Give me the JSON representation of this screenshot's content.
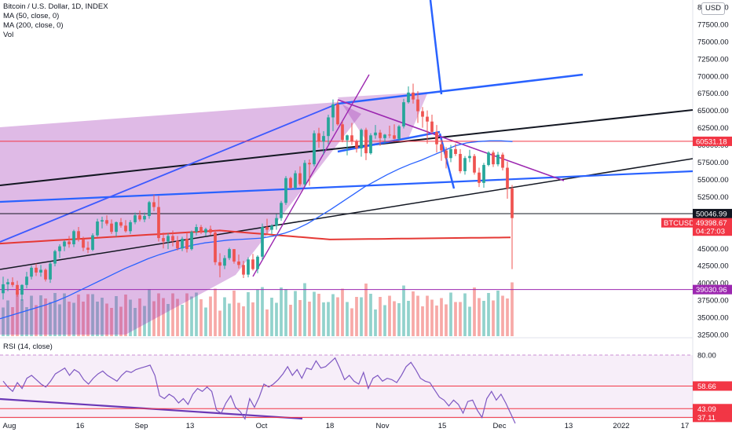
{
  "legend": {
    "symbol": "Bitcoin / U.S. Dollar, 1D, INDEX",
    "ma50": "MA (50, close, 0)",
    "ma200": "MA (200, close, 0)",
    "vol": "Vol"
  },
  "currency_button": "USD",
  "rsi_label": "RSI (14, close)",
  "chart_data": {
    "type": "candlestick",
    "title": "Bitcoin / U.S. Dollar, 1D, INDEX",
    "y_ticks": [
      "80000.00",
      "77500.00",
      "75000.00",
      "72500.00",
      "70000.00",
      "67500.00",
      "65000.00",
      "62500.00",
      "60000.00",
      "57500.00",
      "55000.00",
      "52500.00",
      "50000.00",
      "47500.00",
      "45000.00",
      "42500.00",
      "40000.00",
      "37500.00",
      "35000.00",
      "32500.00"
    ],
    "y_tick_values": [
      80000,
      77500,
      75000,
      72500,
      70000,
      67500,
      65000,
      62500,
      60000,
      57500,
      55000,
      52500,
      50000,
      47500,
      45000,
      42500,
      40000,
      37500,
      35000,
      32500
    ],
    "ylim": [
      32500,
      80000
    ],
    "x_ticks": [
      "Aug",
      "16",
      "Sep",
      "13",
      "Oct",
      "18",
      "Nov",
      "15",
      "Dec",
      "13",
      "2022",
      "17"
    ],
    "price_tags": [
      {
        "label": "60531.18",
        "value": 60531.18,
        "color": "#f23645"
      },
      {
        "label": "50046.99",
        "value": 50046.99,
        "color": "#131722"
      },
      {
        "label": "BTCUSD",
        "value": 49398.67,
        "color": "#f23645"
      },
      {
        "label": "49398.67",
        "value": 49398.67,
        "color": "#f23645"
      },
      {
        "label": "04:27:03",
        "value": 48650,
        "color": "#f23645"
      },
      {
        "label": "39030.96",
        "value": 39030.96,
        "color": "#9c27b0"
      }
    ],
    "horizontal_lines": [
      {
        "value": 60531.18,
        "color": "#f23645"
      },
      {
        "value": 50046.99,
        "color": "#131722"
      },
      {
        "value": 39030.96,
        "color": "#9c27b0"
      }
    ],
    "candles": [
      {
        "o": 38500,
        "h": 40900,
        "l": 37600,
        "c": 39800
      },
      {
        "o": 39800,
        "h": 40600,
        "l": 38800,
        "c": 40100
      },
      {
        "o": 40100,
        "h": 40800,
        "l": 39400,
        "c": 39700
      },
      {
        "o": 39700,
        "h": 40300,
        "l": 38000,
        "c": 38300
      },
      {
        "o": 38300,
        "h": 39800,
        "l": 37400,
        "c": 39700
      },
      {
        "o": 39700,
        "h": 41600,
        "l": 39200,
        "c": 40900
      },
      {
        "o": 40900,
        "h": 42500,
        "l": 40500,
        "c": 42200
      },
      {
        "o": 42200,
        "h": 42800,
        "l": 41000,
        "c": 41500
      },
      {
        "o": 41500,
        "h": 42600,
        "l": 40900,
        "c": 41900
      },
      {
        "o": 41900,
        "h": 42100,
        "l": 40200,
        "c": 40500
      },
      {
        "o": 40500,
        "h": 43100,
        "l": 40000,
        "c": 42800
      },
      {
        "o": 42800,
        "h": 44800,
        "l": 42400,
        "c": 44600
      },
      {
        "o": 44600,
        "h": 45600,
        "l": 43600,
        "c": 45300
      },
      {
        "o": 45300,
        "h": 46200,
        "l": 44600,
        "c": 46000
      },
      {
        "o": 46000,
        "h": 46800,
        "l": 45100,
        "c": 45600
      },
      {
        "o": 45600,
        "h": 47700,
        "l": 45200,
        "c": 47500
      },
      {
        "o": 47500,
        "h": 48100,
        "l": 46000,
        "c": 46300
      },
      {
        "o": 46300,
        "h": 46700,
        "l": 44600,
        "c": 45100
      },
      {
        "o": 45100,
        "h": 46000,
        "l": 44300,
        "c": 44800
      },
      {
        "o": 44800,
        "h": 47200,
        "l": 44600,
        "c": 46900
      },
      {
        "o": 46900,
        "h": 49300,
        "l": 46700,
        "c": 48900
      },
      {
        "o": 48900,
        "h": 49600,
        "l": 47900,
        "c": 49100
      },
      {
        "o": 49100,
        "h": 49800,
        "l": 48300,
        "c": 48600
      },
      {
        "o": 48600,
        "h": 49200,
        "l": 47100,
        "c": 47400
      },
      {
        "o": 47400,
        "h": 48900,
        "l": 46700,
        "c": 48800
      },
      {
        "o": 48800,
        "h": 49400,
        "l": 48000,
        "c": 48300
      },
      {
        "o": 48300,
        "h": 49100,
        "l": 47300,
        "c": 47500
      },
      {
        "o": 47500,
        "h": 49100,
        "l": 47100,
        "c": 48800
      },
      {
        "o": 48800,
        "h": 50200,
        "l": 48500,
        "c": 49800
      },
      {
        "o": 49800,
        "h": 50500,
        "l": 48900,
        "c": 49200
      },
      {
        "o": 49200,
        "h": 50200,
        "l": 48800,
        "c": 49700
      },
      {
        "o": 49700,
        "h": 51900,
        "l": 49300,
        "c": 51700
      },
      {
        "o": 51700,
        "h": 52800,
        "l": 50400,
        "c": 51000
      },
      {
        "o": 51000,
        "h": 52600,
        "l": 46000,
        "c": 46500
      },
      {
        "o": 46500,
        "h": 47300,
        "l": 45000,
        "c": 46000
      },
      {
        "o": 46000,
        "h": 47200,
        "l": 44900,
        "c": 46800
      },
      {
        "o": 46800,
        "h": 47600,
        "l": 45300,
        "c": 46100
      },
      {
        "o": 46100,
        "h": 46800,
        "l": 44700,
        "c": 45000
      },
      {
        "o": 45000,
        "h": 46700,
        "l": 44600,
        "c": 46400
      },
      {
        "o": 46400,
        "h": 47300,
        "l": 44400,
        "c": 44900
      },
      {
        "o": 44900,
        "h": 47600,
        "l": 44700,
        "c": 47400
      },
      {
        "o": 47400,
        "h": 48500,
        "l": 46900,
        "c": 48100
      },
      {
        "o": 48100,
        "h": 48400,
        "l": 47100,
        "c": 47300
      },
      {
        "o": 47300,
        "h": 48000,
        "l": 46800,
        "c": 47800
      },
      {
        "o": 47800,
        "h": 48300,
        "l": 46900,
        "c": 47300
      },
      {
        "o": 47300,
        "h": 47700,
        "l": 42600,
        "c": 43000
      },
      {
        "o": 43000,
        "h": 44300,
        "l": 40800,
        "c": 42500
      },
      {
        "o": 42500,
        "h": 44000,
        "l": 42000,
        "c": 43600
      },
      {
        "o": 43600,
        "h": 45100,
        "l": 43300,
        "c": 44900
      },
      {
        "o": 44900,
        "h": 44900,
        "l": 42800,
        "c": 43100
      },
      {
        "o": 43100,
        "h": 44100,
        "l": 42100,
        "c": 42600
      },
      {
        "o": 42600,
        "h": 43200,
        "l": 40700,
        "c": 41200
      },
      {
        "o": 41200,
        "h": 43700,
        "l": 40800,
        "c": 43400
      },
      {
        "o": 43400,
        "h": 44200,
        "l": 41800,
        "c": 42000
      },
      {
        "o": 42000,
        "h": 44000,
        "l": 41400,
        "c": 43800
      },
      {
        "o": 43800,
        "h": 48600,
        "l": 43300,
        "c": 48100
      },
      {
        "o": 48100,
        "h": 49300,
        "l": 46900,
        "c": 47700
      },
      {
        "o": 47700,
        "h": 48500,
        "l": 47100,
        "c": 48300
      },
      {
        "o": 48300,
        "h": 50000,
        "l": 47700,
        "c": 49400
      },
      {
        "o": 49400,
        "h": 51900,
        "l": 49000,
        "c": 51600
      },
      {
        "o": 51600,
        "h": 55500,
        "l": 51300,
        "c": 55200
      },
      {
        "o": 55200,
        "h": 55400,
        "l": 53600,
        "c": 53800
      },
      {
        "o": 53800,
        "h": 56300,
        "l": 53500,
        "c": 55900
      },
      {
        "o": 55900,
        "h": 56900,
        "l": 54000,
        "c": 54300
      },
      {
        "o": 54300,
        "h": 57800,
        "l": 54000,
        "c": 57400
      },
      {
        "o": 57400,
        "h": 57900,
        "l": 54100,
        "c": 57200
      },
      {
        "o": 57200,
        "h": 62100,
        "l": 56900,
        "c": 61700
      },
      {
        "o": 61700,
        "h": 62500,
        "l": 59600,
        "c": 60500
      },
      {
        "o": 60500,
        "h": 62000,
        "l": 58600,
        "c": 61300
      },
      {
        "o": 61300,
        "h": 64400,
        "l": 60100,
        "c": 64000
      },
      {
        "o": 64000,
        "h": 66600,
        "l": 62000,
        "c": 65900
      },
      {
        "o": 65900,
        "h": 66400,
        "l": 62800,
        "c": 63000
      },
      {
        "o": 63000,
        "h": 63400,
        "l": 60400,
        "c": 60700
      },
      {
        "o": 60700,
        "h": 61500,
        "l": 58500,
        "c": 61400
      },
      {
        "o": 61400,
        "h": 63200,
        "l": 60000,
        "c": 60500
      },
      {
        "o": 60500,
        "h": 60800,
        "l": 58900,
        "c": 59500
      },
      {
        "o": 59500,
        "h": 62400,
        "l": 58300,
        "c": 62200
      },
      {
        "o": 62200,
        "h": 62500,
        "l": 57800,
        "c": 58800
      },
      {
        "o": 58800,
        "h": 61700,
        "l": 58600,
        "c": 61400
      },
      {
        "o": 61400,
        "h": 62900,
        "l": 60900,
        "c": 61800
      },
      {
        "o": 61800,
        "h": 62200,
        "l": 59900,
        "c": 61000
      },
      {
        "o": 61000,
        "h": 61600,
        "l": 60300,
        "c": 61500
      },
      {
        "o": 61500,
        "h": 62800,
        "l": 61000,
        "c": 61400
      },
      {
        "o": 61400,
        "h": 63000,
        "l": 60800,
        "c": 60900
      },
      {
        "o": 60900,
        "h": 62900,
        "l": 60600,
        "c": 62700
      },
      {
        "o": 62700,
        "h": 66700,
        "l": 62400,
        "c": 66200
      },
      {
        "o": 66200,
        "h": 68500,
        "l": 66000,
        "c": 67600
      },
      {
        "o": 67600,
        "h": 68900,
        "l": 66000,
        "c": 66600
      },
      {
        "o": 66600,
        "h": 67800,
        "l": 63200,
        "c": 64900
      },
      {
        "o": 64900,
        "h": 65500,
        "l": 62500,
        "c": 64100
      },
      {
        "o": 64100,
        "h": 65000,
        "l": 60200,
        "c": 63400
      },
      {
        "o": 63400,
        "h": 64400,
        "l": 61700,
        "c": 61900
      },
      {
        "o": 61900,
        "h": 62900,
        "l": 58900,
        "c": 60100
      },
      {
        "o": 60100,
        "h": 60800,
        "l": 57700,
        "c": 59200
      },
      {
        "o": 59200,
        "h": 59700,
        "l": 56600,
        "c": 58100
      },
      {
        "o": 58100,
        "h": 60000,
        "l": 57500,
        "c": 59400
      },
      {
        "o": 59400,
        "h": 60200,
        "l": 58400,
        "c": 58700
      },
      {
        "o": 58700,
        "h": 59400,
        "l": 55900,
        "c": 56200
      },
      {
        "o": 56200,
        "h": 58400,
        "l": 55700,
        "c": 58100
      },
      {
        "o": 58100,
        "h": 59300,
        "l": 57500,
        "c": 58400
      },
      {
        "o": 58400,
        "h": 58700,
        "l": 55700,
        "c": 56000
      },
      {
        "o": 56000,
        "h": 56700,
        "l": 53900,
        "c": 54500
      },
      {
        "o": 54500,
        "h": 57400,
        "l": 53800,
        "c": 57100
      },
      {
        "o": 57100,
        "h": 59100,
        "l": 56900,
        "c": 58900
      },
      {
        "o": 58900,
        "h": 59200,
        "l": 56800,
        "c": 57200
      },
      {
        "o": 57200,
        "h": 59000,
        "l": 56900,
        "c": 58600
      },
      {
        "o": 58600,
        "h": 58900,
        "l": 56300,
        "c": 56700
      },
      {
        "o": 56700,
        "h": 57600,
        "l": 52200,
        "c": 53700
      },
      {
        "o": 53700,
        "h": 54200,
        "l": 42000,
        "c": 49398.67
      }
    ],
    "ma50": [
      34800,
      35300,
      35800,
      36300,
      36800,
      37400,
      38100,
      38900,
      39700,
      40500,
      41300,
      42100,
      42800,
      43500,
      44100,
      44600,
      45100,
      45500,
      45800,
      46000,
      46200,
      46300,
      46400,
      46500,
      46800,
      47200,
      47800,
      48600,
      49600,
      50600,
      51700,
      52800,
      53900,
      54800,
      55700,
      56500,
      57200,
      57800,
      58500,
      59200,
      59900,
      60300,
      60500,
      60600,
      60600,
      60500
    ],
    "ma50_x": [
      0,
      20,
      40,
      60,
      80,
      100,
      120,
      140,
      160,
      180,
      200,
      220,
      240,
      260,
      280,
      300,
      320,
      340,
      360,
      380,
      400,
      420,
      440,
      460,
      480,
      500,
      520,
      540,
      560,
      580,
      600,
      620,
      640,
      660,
      680,
      700,
      720,
      740,
      760,
      780,
      800,
      820,
      840,
      860,
      880,
      900
    ],
    "rsi_ticks": [
      "80.00"
    ],
    "rsi_tags": [
      {
        "label": "58.66",
        "value": 58.66
      },
      {
        "label": "43.09",
        "value": 43.09
      },
      {
        "label": "37.11",
        "value": 37.11
      }
    ],
    "rsi": [
      62,
      58,
      55,
      61,
      57,
      64,
      66,
      63,
      60,
      58,
      62,
      67,
      69,
      71,
      66,
      70,
      68,
      63,
      60,
      64,
      67,
      69,
      66,
      64,
      62,
      66,
      69,
      68,
      70,
      71,
      72,
      73,
      66,
      52,
      50,
      53,
      51,
      47,
      50,
      46,
      53,
      57,
      55,
      58,
      55,
      42,
      40,
      47,
      52,
      44,
      41,
      36,
      50,
      44,
      51,
      60,
      58,
      60,
      63,
      67,
      72,
      66,
      70,
      64,
      71,
      70,
      76,
      71,
      72,
      75,
      78,
      71,
      63,
      66,
      62,
      60,
      68,
      57,
      64,
      66,
      62,
      64,
      63,
      61,
      66,
      72,
      75,
      70,
      64,
      62,
      61,
      56,
      51,
      49,
      45,
      49,
      46,
      40,
      48,
      49,
      42,
      37,
      50,
      55,
      49,
      53,
      47,
      40,
      33
    ]
  }
}
